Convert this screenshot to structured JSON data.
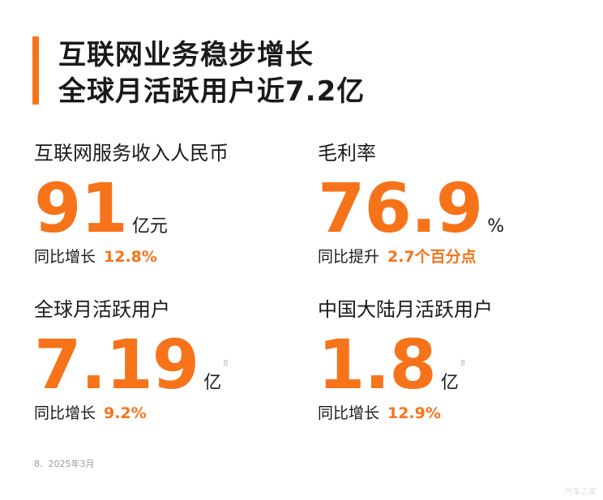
{
  "header": {
    "title_lines": [
      "互联网业务稳步增长",
      "全球月活跃用户近7.2亿"
    ]
  },
  "metrics": [
    {
      "label": "互联网服务收入人民币",
      "value": "91",
      "unit": "亿元",
      "change_label": "同比增长",
      "change_value": "12.8%"
    },
    {
      "label": "毛利率",
      "value": "76.9",
      "unit": "%",
      "change_label": "同比提升",
      "change_value": "2.7个百分点"
    },
    {
      "label": "全球月活跃用户",
      "value": "7.19",
      "unit": "亿",
      "footnote": "8",
      "change_label": "同比增长",
      "change_value": "9.2%"
    },
    {
      "label": "中国大陆月活跃用户",
      "value": "1.8",
      "unit": "亿",
      "footnote": "8",
      "change_label": "同比增长",
      "change_value": "12.9%"
    }
  ],
  "footer": {
    "note": "8.  2025年3月"
  },
  "watermark": "汽车之家"
}
